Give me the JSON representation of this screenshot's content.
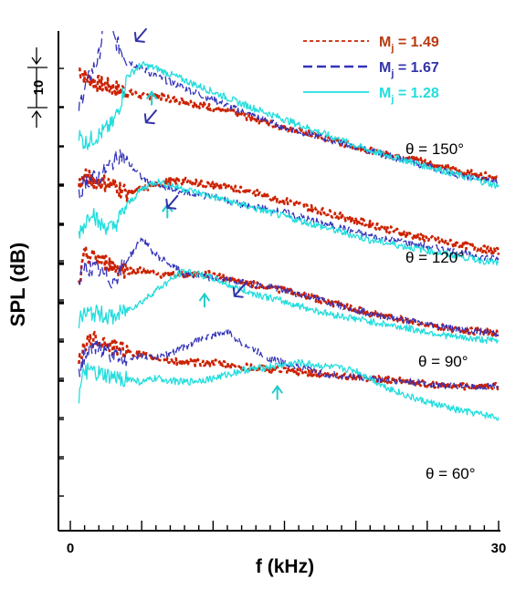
{
  "chart_data": {
    "type": "line",
    "xlabel": "f (kHz)",
    "ylabel": "SPL (dB)",
    "xlim": [
      0,
      30
    ],
    "x_ticks": [
      "0",
      "30"
    ],
    "scale_bar": {
      "label": "10",
      "db": 10
    },
    "legend_position": "top-right",
    "series": [
      {
        "name": "Mj = 1.49",
        "label_main": "M",
        "label_sub": "j",
        "label_rest": " = 1.49",
        "color": "#cc2200",
        "text_color": "#b83a10",
        "dash": "4 3"
      },
      {
        "name": "Mj = 1.67",
        "label_main": "M",
        "label_sub": "j",
        "label_rest": " = 1.67",
        "color": "#3333bb",
        "text_color": "#3333aa",
        "dash": "10 5"
      },
      {
        "name": "Mj = 1.28",
        "label_main": "M",
        "label_sub": "j",
        "label_rest": " = 1.28",
        "color": "#22dddd",
        "text_color": "#22dddd",
        "dash": ""
      }
    ],
    "panels": [
      {
        "label": "θ = 150°",
        "curves": [
          {
            "x": [
              0.6,
              1,
              2,
              3,
              4,
              5,
              6,
              8,
              10,
              12,
              15,
              18,
              21,
              24,
              27,
              30
            ],
            "y": [
              10,
              8,
              6,
              5,
              4,
              3,
              3,
              1.5,
              0,
              -2,
              -5,
              -8,
              -11,
              -13,
              -16,
              -18
            ]
          },
          {
            "x": [
              0.6,
              1,
              2,
              2.5,
              3,
              3.5,
              4,
              5,
              6,
              8,
              10,
              12,
              15,
              18,
              21,
              24,
              27,
              30
            ],
            "y": [
              0,
              5,
              13,
              25,
              18,
              15,
              12,
              10,
              8,
              5,
              2,
              -1,
              -5,
              -8,
              -11,
              -14,
              -17,
              -19
            ]
          },
          {
            "x": [
              0.6,
              1,
              2,
              3,
              3.5,
              4,
              5,
              6,
              8,
              10,
              12,
              15,
              18,
              21,
              24,
              27,
              30
            ],
            "y": [
              -7,
              -9,
              -7,
              -4,
              1,
              8,
              11,
              10,
              7,
              4,
              1,
              -3,
              -7,
              -11,
              -14,
              -17,
              -20
            ]
          }
        ]
      },
      {
        "label": "θ = 120°",
        "curves": [
          {
            "x": [
              0.6,
              1,
              2,
              3,
              4,
              5,
              6,
              7,
              8,
              10,
              12,
              15,
              18,
              21,
              24,
              27,
              30
            ],
            "y": [
              0,
              2,
              1,
              0,
              -2,
              -1,
              0,
              1,
              1,
              0,
              -1,
              -4,
              -7,
              -10,
              -13,
              -15,
              -17
            ]
          },
          {
            "x": [
              0.6,
              1,
              2,
              3,
              3.5,
              4,
              5,
              6,
              7,
              8,
              10,
              12,
              15,
              18,
              21,
              24,
              27,
              30
            ],
            "y": [
              -3,
              1,
              2,
              6,
              8,
              6,
              2,
              0,
              -1,
              -2,
              -3,
              -5,
              -7,
              -10,
              -13,
              -15,
              -17,
              -19
            ]
          },
          {
            "x": [
              0.6,
              1,
              1.5,
              2,
              3,
              4,
              5,
              6,
              7,
              8,
              10,
              12,
              15,
              18,
              21,
              24,
              27,
              30
            ],
            "y": [
              -12,
              -10,
              -6,
              -10,
              -11,
              -5,
              -1,
              1,
              0,
              -1,
              -3,
              -5,
              -8,
              -11,
              -14,
              -16,
              -18,
              -20
            ]
          }
        ]
      },
      {
        "label": "θ = 90°",
        "curves": [
          {
            "x": [
              0.6,
              1,
              2,
              3,
              4,
              5,
              6,
              8,
              10,
              12,
              15,
              18,
              21,
              24,
              27,
              30
            ],
            "y": [
              -6,
              2,
              1,
              -1,
              -2,
              -2,
              -3,
              -3,
              -3,
              -5,
              -7,
              -10,
              -13,
              -15,
              -17,
              -18
            ]
          },
          {
            "x": [
              0.6,
              1,
              2,
              3,
              4,
              5,
              6,
              8,
              10,
              12,
              15,
              18,
              21,
              24,
              27,
              30
            ],
            "y": [
              -5,
              -1,
              -2,
              -5,
              1,
              6,
              2,
              -3,
              -4,
              -5,
              -7,
              -10,
              -13,
              -15,
              -17,
              -18
            ]
          },
          {
            "x": [
              0.6,
              1,
              2,
              3,
              4,
              5,
              6,
              8,
              10,
              12,
              15,
              18,
              21,
              24,
              27,
              30
            ],
            "y": [
              -15,
              -13,
              -13,
              -14,
              -12,
              -10,
              -7,
              -2,
              -4,
              -7,
              -10,
              -13,
              -15,
              -17,
              -19,
              -20
            ]
          }
        ]
      },
      {
        "label": "θ = 60°",
        "curves": [
          {
            "x": [
              0.6,
              1,
              2,
              3,
              4,
              5,
              6,
              8,
              10,
              12,
              15,
              18,
              21,
              24,
              27,
              30
            ],
            "y": [
              -5,
              -1,
              0,
              -2,
              -3,
              -4,
              -5,
              -6,
              -6,
              -7,
              -8,
              -9,
              -10,
              -11,
              -12,
              -12
            ]
          },
          {
            "x": [
              0.6,
              1,
              2,
              3,
              4,
              5,
              6,
              8,
              9,
              10,
              11,
              12,
              14,
              16,
              18,
              21,
              24,
              27,
              30
            ],
            "y": [
              -8,
              -4,
              -2,
              -4,
              -5,
              -4,
              -5,
              -2,
              0,
              1,
              2,
              -1,
              -5,
              -7,
              -9,
              -10,
              -11,
              -12,
              -12
            ]
          },
          {
            "x": [
              0.6,
              1,
              2,
              3,
              4,
              5,
              6,
              8,
              10,
              12,
              14,
              16,
              18,
              20,
              22,
              24,
              27,
              30
            ],
            "y": [
              -15,
              -8,
              -9,
              -10,
              -10,
              -11,
              -10,
              -11,
              -10,
              -8,
              -7,
              -6,
              -7,
              -8,
              -12,
              -15,
              -18,
              -20
            ]
          }
        ]
      }
    ],
    "peak_markers": [
      {
        "panel": 0,
        "series": 1,
        "x": 4.6,
        "dB": 17,
        "dir": "down-left"
      },
      {
        "panel": 0,
        "series": 2,
        "x": 5.7,
        "dB": 4,
        "dir": "up"
      },
      {
        "panel": 1,
        "series": 1,
        "x": 5.3,
        "dB": 16,
        "dir": "down-left"
      },
      {
        "panel": 1,
        "series": 2,
        "x": 6.8,
        "dB": -5,
        "dir": "up"
      },
      {
        "panel": 2,
        "series": 1,
        "x": 6.8,
        "dB": 14,
        "dir": "down-left"
      },
      {
        "panel": 2,
        "series": 2,
        "x": 9.4,
        "dB": -8,
        "dir": "up"
      },
      {
        "panel": 3,
        "series": 1,
        "x": 11.5,
        "dB": 11,
        "dir": "down-left"
      },
      {
        "panel": 3,
        "series": 2,
        "x": 14.5,
        "dB": -12,
        "dir": "up"
      }
    ]
  }
}
